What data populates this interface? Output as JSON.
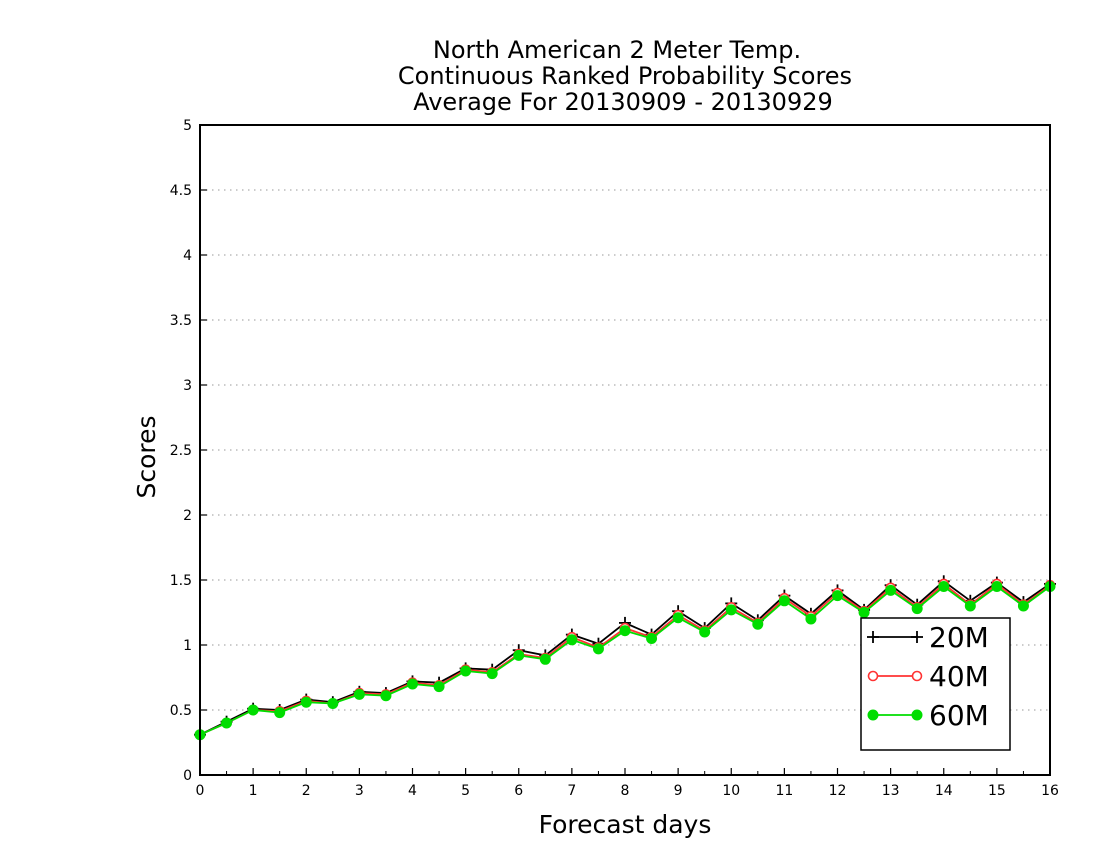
{
  "chart_data": {
    "type": "line",
    "title_lines": [
      "North American 2 Meter Temp.",
      "Continuous Ranked Probability Scores",
      "Average For 20130909 - 20130929"
    ],
    "xlabel": "Forecast days",
    "ylabel": "Scores",
    "xlim": [
      0,
      16
    ],
    "ylim": [
      0,
      5
    ],
    "xticks": [
      "0",
      "1",
      "2",
      "3",
      "4",
      "5",
      "6",
      "7",
      "8",
      "9",
      "10",
      "11",
      "12",
      "13",
      "14",
      "15",
      "16"
    ],
    "yticks": [
      "0",
      "0.5",
      "1",
      "1.5",
      "2",
      "2.5",
      "3",
      "3.5",
      "4",
      "4.5",
      "5"
    ],
    "grid": "horizontal dotted",
    "legend_position": "lower-right",
    "x": [
      0,
      0.5,
      1,
      1.5,
      2,
      2.5,
      3,
      3.5,
      4,
      4.5,
      5,
      5.5,
      6,
      6.5,
      7,
      7.5,
      8,
      8.5,
      9,
      9.5,
      10,
      10.5,
      11,
      11.5,
      12,
      12.5,
      13,
      13.5,
      14,
      14.5,
      15,
      15.5,
      16
    ],
    "series": [
      {
        "name": "20M",
        "color": "#000000",
        "marker": "plus",
        "values": [
          0.31,
          0.41,
          0.51,
          0.5,
          0.58,
          0.56,
          0.64,
          0.63,
          0.72,
          0.71,
          0.82,
          0.81,
          0.96,
          0.92,
          1.08,
          1.01,
          1.17,
          1.08,
          1.26,
          1.13,
          1.32,
          1.19,
          1.38,
          1.24,
          1.42,
          1.27,
          1.46,
          1.31,
          1.49,
          1.34,
          1.48,
          1.33,
          1.47
        ]
      },
      {
        "name": "40M",
        "color": "#ff3333",
        "marker": "open-circle",
        "values": [
          0.31,
          0.4,
          0.5,
          0.49,
          0.57,
          0.55,
          0.63,
          0.62,
          0.71,
          0.69,
          0.81,
          0.79,
          0.93,
          0.9,
          1.06,
          0.98,
          1.13,
          1.06,
          1.23,
          1.11,
          1.29,
          1.17,
          1.36,
          1.22,
          1.4,
          1.26,
          1.44,
          1.29,
          1.47,
          1.31,
          1.47,
          1.31,
          1.46
        ]
      },
      {
        "name": "60M",
        "color": "#00dd00",
        "marker": "filled-circle",
        "values": [
          0.31,
          0.4,
          0.5,
          0.48,
          0.56,
          0.55,
          0.62,
          0.61,
          0.7,
          0.68,
          0.8,
          0.78,
          0.92,
          0.89,
          1.04,
          0.97,
          1.11,
          1.05,
          1.21,
          1.1,
          1.27,
          1.16,
          1.34,
          1.2,
          1.38,
          1.25,
          1.42,
          1.28,
          1.45,
          1.3,
          1.45,
          1.3,
          1.45
        ]
      }
    ]
  }
}
